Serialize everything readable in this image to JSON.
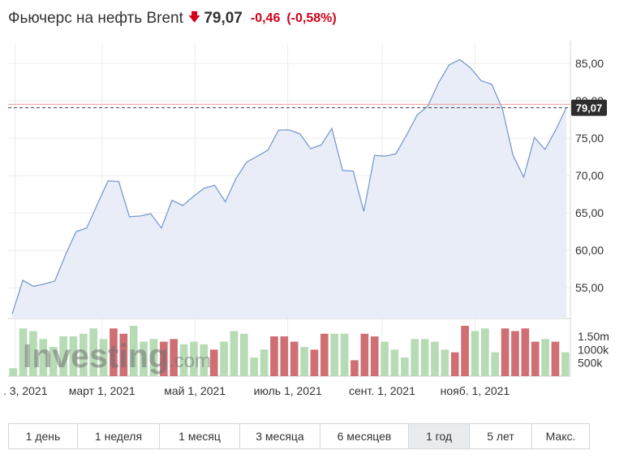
{
  "header": {
    "title": "Фьючерс на нефть Brent",
    "price": "79,07",
    "change": "-0,46",
    "change_pct": "(-0,58%)",
    "down_color": "#d0021b",
    "arrow_icon": "arrow-down-icon"
  },
  "watermark": {
    "brand": "Investing",
    "suffix": ".com"
  },
  "colors": {
    "line": "#7b9bd0",
    "area": "#e8edf7",
    "up_volume": "#b6dbb5",
    "down_volume": "#cf6f74",
    "last_price_box": "#2d2d2d"
  },
  "chart_data": {
    "type": "area",
    "price": {
      "x": [
        "2021-01-01",
        "2021-01-08",
        "2021-01-15",
        "2021-01-22",
        "2021-01-29",
        "2021-02-05",
        "2021-02-12",
        "2021-02-19",
        "2021-02-26",
        "2021-03-05",
        "2021-03-12",
        "2021-03-19",
        "2021-03-26",
        "2021-04-02",
        "2021-04-09",
        "2021-04-16",
        "2021-04-23",
        "2021-04-30",
        "2021-05-07",
        "2021-05-14",
        "2021-05-21",
        "2021-05-28",
        "2021-06-04",
        "2021-06-11",
        "2021-06-18",
        "2021-06-25",
        "2021-07-02",
        "2021-07-09",
        "2021-07-16",
        "2021-07-23",
        "2021-07-30",
        "2021-08-06",
        "2021-08-13",
        "2021-08-20",
        "2021-08-27",
        "2021-09-03",
        "2021-09-10",
        "2021-09-17",
        "2021-09-24",
        "2021-10-01",
        "2021-10-08",
        "2021-10-15",
        "2021-10-22",
        "2021-10-29",
        "2021-11-05",
        "2021-11-12",
        "2021-11-19",
        "2021-11-26",
        "2021-12-03",
        "2021-12-10",
        "2021-12-17",
        "2021-12-24",
        "2021-12-31"
      ],
      "values": [
        51.5,
        56.0,
        55.2,
        55.5,
        55.9,
        59.4,
        62.5,
        63.0,
        66.2,
        69.3,
        69.2,
        64.5,
        64.6,
        64.9,
        63.0,
        66.7,
        66.0,
        67.2,
        68.3,
        68.7,
        66.5,
        69.6,
        71.8,
        72.6,
        73.4,
        76.1,
        76.1,
        75.6,
        73.6,
        74.1,
        76.3,
        70.7,
        70.6,
        65.2,
        72.7,
        72.6,
        72.9,
        75.4,
        78.1,
        79.3,
        82.4,
        84.8,
        85.5,
        84.4,
        82.7,
        82.2,
        78.9,
        72.7,
        69.8,
        75.1,
        73.5,
        76.1,
        79.07
      ]
    },
    "volume": {
      "values": [
        0.3,
        1.8,
        1.7,
        1.4,
        1.1,
        1.5,
        1.5,
        1.6,
        1.8,
        1.4,
        1.8,
        1.6,
        1.9,
        1.3,
        1.4,
        1.3,
        1.4,
        1.2,
        1.3,
        1.2,
        1.0,
        1.3,
        1.7,
        1.6,
        0.7,
        1.0,
        1.5,
        1.5,
        1.3,
        1.1,
        1.0,
        1.6,
        1.6,
        1.6,
        0.6,
        1.6,
        1.5,
        1.3,
        1.0,
        0.7,
        1.4,
        1.4,
        1.3,
        1.0,
        0.9,
        1.9,
        1.7,
        1.8,
        0.9,
        1.8,
        1.7,
        1.8,
        1.3,
        1.4,
        1.3,
        0.9
      ],
      "direction": [
        "up",
        "up",
        "up",
        "up",
        "up",
        "up",
        "up",
        "up",
        "up",
        "up",
        "down",
        "down",
        "up",
        "up",
        "up",
        "down",
        "down",
        "up",
        "up",
        "up",
        "down",
        "up",
        "up",
        "up",
        "up",
        "up",
        "down",
        "down",
        "down",
        "up",
        "down",
        "down",
        "up",
        "up",
        "down",
        "down",
        "down",
        "up",
        "up",
        "up",
        "up",
        "up",
        "up",
        "up",
        "down",
        "down",
        "up",
        "up",
        "up",
        "down",
        "down",
        "down",
        "down",
        "up",
        "down",
        "up"
      ],
      "tick_labels": [
        "1.50m",
        "1000k",
        "500k"
      ],
      "ticks": [
        1.5,
        1.0,
        0.5
      ]
    },
    "ylim": [
      50.9,
      87.5
    ],
    "y_ticks": [
      55,
      60,
      65,
      70,
      75,
      80,
      85
    ],
    "y_tick_labels": [
      "55,00",
      "60,00",
      "65,00",
      "70,00",
      "75,00",
      "80,00",
      "85,00"
    ],
    "last_value_label": "79,07",
    "previous_close": 79.53,
    "x_ticks": [
      {
        "date": "2021-01-03",
        "label": ". 3, 2021"
      },
      {
        "date": "2021-03-01",
        "label": "март 1, 2021"
      },
      {
        "date": "2021-05-01",
        "label": "май 1, 2021"
      },
      {
        "date": "2021-07-01",
        "label": "июль 1, 2021"
      },
      {
        "date": "2021-09-01",
        "label": "сент. 1, 2021"
      },
      {
        "date": "2021-11-01",
        "label": "нояб. 1, 2021"
      }
    ],
    "grid": true,
    "title": "",
    "xlabel": "",
    "ylabel": ""
  },
  "tabs": [
    {
      "label": "1 день",
      "active": false
    },
    {
      "label": "1 неделя",
      "active": false
    },
    {
      "label": "1 месяц",
      "active": false
    },
    {
      "label": "3 месяца",
      "active": false
    },
    {
      "label": "6 месяцев",
      "active": false
    },
    {
      "label": "1 год",
      "active": true
    },
    {
      "label": "5 лет",
      "active": false
    },
    {
      "label": "Макс.",
      "active": false
    }
  ]
}
